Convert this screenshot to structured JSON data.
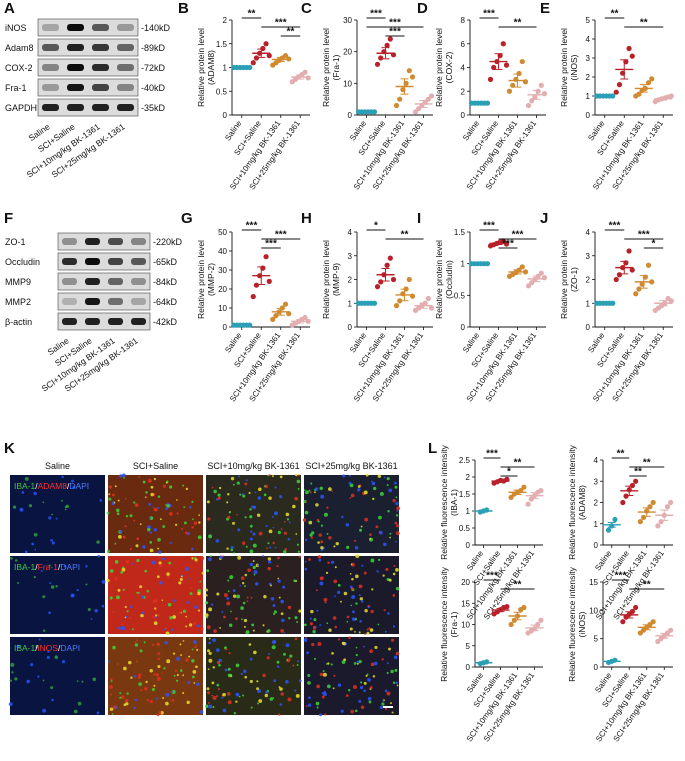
{
  "panels": {
    "A": "A",
    "B": "B",
    "C": "C",
    "D": "D",
    "E": "E",
    "F": "F",
    "G": "G",
    "H": "H",
    "I": "I",
    "J": "J",
    "K": "K",
    "L": "L"
  },
  "colors": {
    "saline": "#2a9fb5",
    "sci": "#b8202a",
    "low": "#d08a30",
    "high": "#e2aeb0",
    "bar": "#111111"
  },
  "blot_A": {
    "rows": [
      {
        "name": "iNOS",
        "kd": "-140kD"
      },
      {
        "name": "Adam8",
        "kd": "-89kD"
      },
      {
        "name": "COX-2",
        "kd": "-72kD"
      },
      {
        "name": "Fra-1",
        "kd": "-40kD"
      },
      {
        "name": "GAPDH",
        "kd": "-35kD"
      }
    ]
  },
  "blot_F": {
    "rows": [
      {
        "name": "ZO-1",
        "kd": "-220kD"
      },
      {
        "name": "Occludin",
        "kd": "-65kD"
      },
      {
        "name": "MMP9",
        "kd": "-84kD"
      },
      {
        "name": "MMP2",
        "kd": "-64kD"
      },
      {
        "name": "β-actin",
        "kd": "-42kD"
      }
    ]
  },
  "lane_labels": [
    "Saline",
    "SCI+Saline",
    "SCI+10mg/kg BK-1361",
    "SCI+25mg/kg BK-1361"
  ],
  "micro_K": {
    "columns": [
      "Saline",
      "SCI+Saline",
      "SCI+10mg/kg BK-1361",
      "SCI+25mg/kg BK-1361"
    ],
    "rows": [
      {
        "parts": [
          {
            "t": "IBA-1",
            "c": "#3ccb3c"
          },
          {
            "t": "/",
            "c": "#ffffff"
          },
          {
            "t": "ADAM8",
            "c": "#ff3030"
          },
          {
            "t": "/",
            "c": "#ffffff"
          },
          {
            "t": "DAPI",
            "c": "#4a7bff"
          }
        ]
      },
      {
        "parts": [
          {
            "t": "IBA-1",
            "c": "#3ccb3c"
          },
          {
            "t": "/",
            "c": "#ffffff"
          },
          {
            "t": "Fra-1",
            "c": "#ff3030"
          },
          {
            "t": "/",
            "c": "#ffffff"
          },
          {
            "t": "DAPI",
            "c": "#4a7bff"
          }
        ]
      },
      {
        "parts": [
          {
            "t": "IBA-1",
            "c": "#3ccb3c"
          },
          {
            "t": "/",
            "c": "#ffffff"
          },
          {
            "t": "iNOS",
            "c": "#ff3030"
          },
          {
            "t": "/",
            "c": "#ffffff"
          },
          {
            "t": "DAPI",
            "c": "#4a7bff"
          }
        ]
      }
    ]
  },
  "chart_data": [
    {
      "id": "B",
      "type": "scatter",
      "ylabel": "Relative protein level\n(ADAM8)",
      "ylim": [
        0,
        2
      ],
      "yticks": [
        0,
        0.5,
        1,
        1.5,
        2
      ],
      "groups": [
        [
          1.0,
          1.0,
          1.0,
          1.0,
          1.0,
          1.0
        ],
        [
          1.1,
          1.2,
          1.3,
          1.4,
          1.5,
          1.25
        ],
        [
          1.05,
          1.1,
          1.15,
          1.2,
          1.25,
          1.18
        ],
        [
          0.7,
          0.75,
          0.8,
          0.85,
          0.9,
          0.78
        ]
      ],
      "means": [
        1.0,
        1.3,
        1.17,
        0.8
      ],
      "sig": [
        {
          "a": 0,
          "b": 1,
          "label": "**",
          "level": 0
        },
        {
          "a": 1,
          "b": 3,
          "label": "***",
          "level": 1
        },
        {
          "a": 2,
          "b": 3,
          "label": "**",
          "level": 2
        }
      ]
    },
    {
      "id": "C",
      "type": "scatter",
      "ylabel": "Relative protein level\n(Fra-1)",
      "ylim": [
        0,
        30
      ],
      "yticks": [
        0,
        10,
        20,
        30
      ],
      "groups": [
        [
          1,
          1,
          1,
          1,
          1,
          1
        ],
        [
          16,
          18,
          20,
          22,
          24,
          19
        ],
        [
          3,
          5,
          8,
          10,
          14,
          12
        ],
        [
          1,
          2,
          3,
          4,
          5,
          6
        ]
      ],
      "means": [
        1,
        19.5,
        9,
        3.5
      ],
      "sig": [
        {
          "a": 0,
          "b": 1,
          "label": "***",
          "level": 0
        },
        {
          "a": 0,
          "b": 3,
          "label": "***",
          "level": 1
        },
        {
          "a": 1,
          "b": 2,
          "label": "***",
          "level": 2
        }
      ]
    },
    {
      "id": "D",
      "type": "scatter",
      "ylabel": "Relative protein level\n(COX-2)",
      "ylim": [
        0,
        8
      ],
      "yticks": [
        0,
        2,
        4,
        6,
        8
      ],
      "groups": [
        [
          1,
          1,
          1,
          1,
          1,
          1
        ],
        [
          3,
          4,
          4.5,
          5,
          6,
          4.2
        ],
        [
          2,
          2.5,
          3,
          3.5,
          4.5,
          2.8
        ],
        [
          0.8,
          1.2,
          1.5,
          2,
          2.5,
          1.8
        ]
      ],
      "means": [
        1,
        4.5,
        2.9,
        1.7
      ],
      "sig": [
        {
          "a": 0,
          "b": 1,
          "label": "***",
          "level": 0
        },
        {
          "a": 1,
          "b": 3,
          "label": "**",
          "level": 1
        }
      ]
    },
    {
      "id": "E",
      "type": "scatter",
      "ylabel": "Relative protein level\n(iNOS)",
      "ylim": [
        0,
        5
      ],
      "yticks": [
        0,
        1,
        2,
        3,
        4,
        5
      ],
      "groups": [
        [
          1,
          1,
          1,
          1,
          1,
          1
        ],
        [
          1.2,
          1.6,
          2.2,
          2.8,
          3.5,
          3.1
        ],
        [
          1.0,
          1.1,
          1.3,
          1.4,
          1.7,
          1.9
        ],
        [
          0.7,
          0.8,
          0.85,
          0.9,
          0.95,
          1.0
        ]
      ],
      "means": [
        1,
        2.4,
        1.4,
        0.85
      ],
      "sig": [
        {
          "a": 0,
          "b": 1,
          "label": "**",
          "level": 0
        },
        {
          "a": 1,
          "b": 3,
          "label": "**",
          "level": 1
        }
      ]
    },
    {
      "id": "G",
      "type": "scatter",
      "ylabel": "Relative protein level\n(MMP-2)",
      "ylim": [
        0,
        50
      ],
      "yticks": [
        0,
        10,
        20,
        30,
        40,
        50
      ],
      "groups": [
        [
          1,
          1,
          1,
          1,
          1,
          1
        ],
        [
          16,
          22,
          27,
          31,
          37,
          24
        ],
        [
          4,
          6,
          8,
          10,
          12,
          7
        ],
        [
          1,
          2,
          3,
          4,
          5,
          3
        ]
      ],
      "means": [
        1,
        27,
        8,
        3
      ],
      "sig": [
        {
          "a": 0,
          "b": 1,
          "label": "***",
          "level": 0
        },
        {
          "a": 1,
          "b": 3,
          "label": "***",
          "level": 1
        },
        {
          "a": 1,
          "b": 2,
          "label": "***",
          "level": 2
        }
      ]
    },
    {
      "id": "H",
      "type": "scatter",
      "ylabel": "Relative protein level\n(MMP-9)",
      "ylim": [
        0,
        4
      ],
      "yticks": [
        0,
        1,
        2,
        3,
        4
      ],
      "groups": [
        [
          1,
          1,
          1,
          1,
          1,
          1
        ],
        [
          1.7,
          1.9,
          2.2,
          2.6,
          2.9,
          2.0
        ],
        [
          0.9,
          1.1,
          1.4,
          1.6,
          2.0,
          1.3
        ],
        [
          0.7,
          0.8,
          0.9,
          1.0,
          1.2,
          0.8
        ]
      ],
      "means": [
        1,
        2.2,
        1.35,
        0.9
      ],
      "sig": [
        {
          "a": 0,
          "b": 1,
          "label": "*",
          "level": 0
        },
        {
          "a": 1,
          "b": 3,
          "label": "**",
          "level": 1
        }
      ]
    },
    {
      "id": "I",
      "type": "scatter",
      "ylabel": "Relative protein level\n(Occludin)",
      "ylim": [
        0,
        1.5
      ],
      "yticks": [
        0,
        0.5,
        1,
        1.5
      ],
      "groups": [
        [
          1,
          1,
          1,
          1,
          1,
          1
        ],
        [
          1.28,
          1.3,
          1.32,
          1.34,
          1.36,
          1.31
        ],
        [
          0.8,
          0.83,
          0.86,
          0.9,
          0.95,
          0.87
        ],
        [
          0.65,
          0.7,
          0.75,
          0.8,
          0.85,
          0.78
        ]
      ],
      "means": [
        1,
        1.32,
        0.87,
        0.76
      ],
      "sig": [
        {
          "a": 0,
          "b": 1,
          "label": "***",
          "level": 0
        },
        {
          "a": 1,
          "b": 3,
          "label": "***",
          "level": 1
        },
        {
          "a": 1,
          "b": 2,
          "label": "***",
          "level": 2
        }
      ]
    },
    {
      "id": "J",
      "type": "scatter",
      "ylabel": "Relative protein level\n(ZO-1)",
      "ylim": [
        0,
        4
      ],
      "yticks": [
        0,
        1,
        2,
        3,
        4
      ],
      "groups": [
        [
          1,
          1,
          1,
          1,
          1,
          1
        ],
        [
          2.0,
          2.2,
          2.5,
          2.7,
          3.2,
          2.4
        ],
        [
          1.4,
          1.6,
          1.8,
          2.1,
          2.6,
          1.9
        ],
        [
          0.7,
          0.8,
          0.9,
          1.0,
          1.2,
          1.1
        ]
      ],
      "means": [
        1,
        2.5,
        1.9,
        1.0
      ],
      "sig": [
        {
          "a": 0,
          "b": 1,
          "label": "***",
          "level": 0
        },
        {
          "a": 1,
          "b": 3,
          "label": "***",
          "level": 1
        },
        {
          "a": 2,
          "b": 3,
          "label": "*",
          "level": 2
        }
      ]
    },
    {
      "id": "L1",
      "type": "scatter",
      "ylabel": "Relative fluorescence intensity\n(IBA-1)",
      "ylim": [
        0,
        2.5
      ],
      "yticks": [
        0,
        0.5,
        1,
        1.5,
        2,
        2.5
      ],
      "groups": [
        [
          0.97,
          1.0,
          1.03
        ],
        [
          1.82,
          1.86,
          1.9,
          1.88,
          1.93
        ],
        [
          1.4,
          1.5,
          1.55,
          1.6,
          1.7
        ],
        [
          1.2,
          1.35,
          1.45,
          1.55,
          1.6
        ]
      ],
      "means": [
        1,
        1.88,
        1.55,
        1.45
      ],
      "sig": [
        {
          "a": 0,
          "b": 1,
          "label": "***",
          "level": 0
        },
        {
          "a": 1,
          "b": 3,
          "label": "**",
          "level": 1
        },
        {
          "a": 1,
          "b": 2,
          "label": "*",
          "level": 2
        }
      ]
    },
    {
      "id": "L2",
      "type": "scatter",
      "ylabel": "Relative fluorescence intensity\n(ADAM8)",
      "ylim": [
        0,
        4
      ],
      "yticks": [
        0,
        1,
        2,
        3,
        4
      ],
      "groups": [
        [
          0.7,
          0.9,
          1.2
        ],
        [
          2.0,
          2.3,
          2.6,
          2.8,
          3.0
        ],
        [
          1.1,
          1.3,
          1.6,
          1.8,
          2.0
        ],
        [
          0.9,
          1.1,
          1.4,
          1.8,
          2.0
        ]
      ],
      "means": [
        0.95,
        2.55,
        1.55,
        1.4
      ],
      "sig": [
        {
          "a": 0,
          "b": 1,
          "label": "**",
          "level": 0
        },
        {
          "a": 1,
          "b": 3,
          "label": "**",
          "level": 1
        },
        {
          "a": 1,
          "b": 2,
          "label": "**",
          "level": 2
        }
      ]
    },
    {
      "id": "L3",
      "type": "scatter",
      "ylabel": "Relative fluorescence intensity\n(Fra-1)",
      "ylim": [
        0,
        20
      ],
      "yticks": [
        0,
        5,
        10,
        15,
        20
      ],
      "groups": [
        [
          0.8,
          1.0,
          1.2
        ],
        [
          12.5,
          13,
          13.5,
          14,
          14.2
        ],
        [
          10,
          11,
          12,
          13.5,
          14
        ],
        [
          8,
          8.5,
          9,
          10,
          11
        ]
      ],
      "means": [
        1,
        13.4,
        12,
        9.2
      ],
      "sig": [
        {
          "a": 0,
          "b": 1,
          "label": "***",
          "level": 0
        },
        {
          "a": 1,
          "b": 3,
          "label": "**",
          "level": 1
        }
      ]
    },
    {
      "id": "L4",
      "type": "scatter",
      "ylabel": "Relative fluorescence intensity\n(iNOS)",
      "ylim": [
        0,
        15
      ],
      "yticks": [
        0,
        5,
        10,
        15
      ],
      "groups": [
        [
          0.8,
          1.0,
          1.2
        ],
        [
          8,
          8.8,
          9.3,
          9.8,
          10.5
        ],
        [
          6,
          6.5,
          7,
          7.5,
          8
        ],
        [
          4.5,
          5,
          5.5,
          6,
          6.5
        ]
      ],
      "means": [
        1,
        9.2,
        7,
        5.5
      ],
      "sig": [
        {
          "a": 0,
          "b": 1,
          "label": "***",
          "level": 0
        },
        {
          "a": 1,
          "b": 3,
          "label": "**",
          "level": 1
        }
      ]
    }
  ]
}
